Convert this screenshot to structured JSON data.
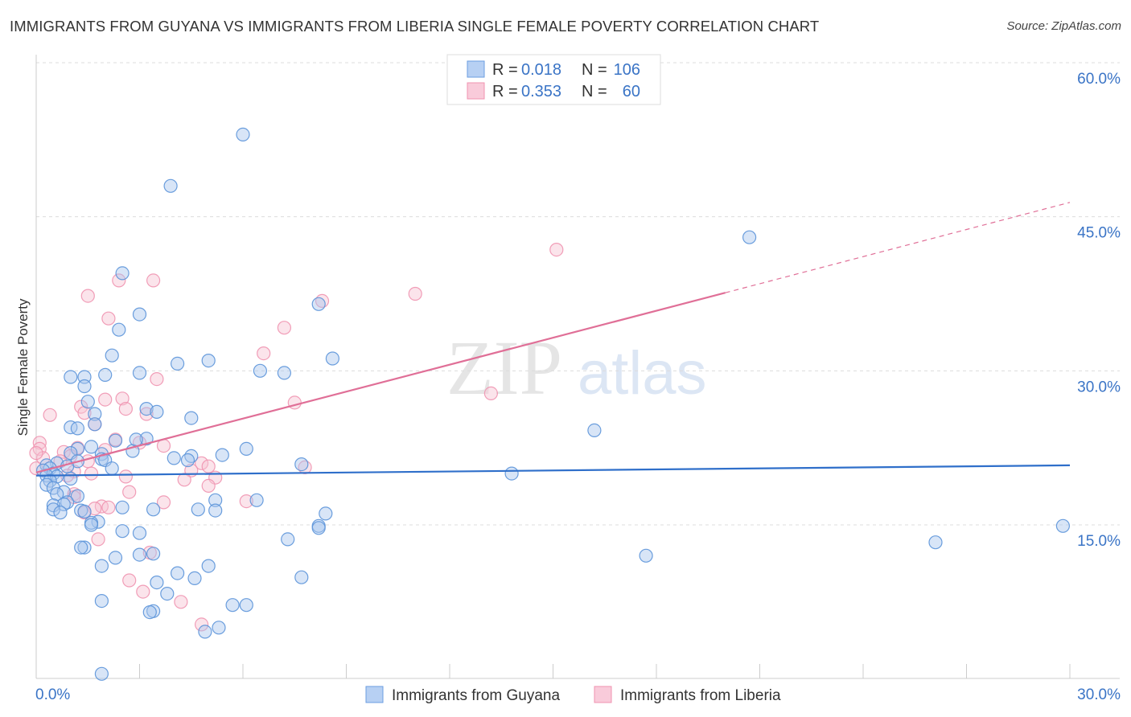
{
  "chart_data": {
    "type": "scatter",
    "title": "IMMIGRANTS FROM GUYANA VS IMMIGRANTS FROM LIBERIA SINGLE FEMALE POVERTY CORRELATION CHART",
    "source": "Source: ZipAtlas.com",
    "xlabel": "",
    "ylabel": "Single Female Poverty",
    "xlim": [
      0,
      30
    ],
    "ylim": [
      0,
      60
    ],
    "x_tick_labels": [
      "0.0%",
      "30.0%"
    ],
    "y_ticks": [
      15,
      30,
      45,
      60
    ],
    "y_tick_labels": [
      "15.0%",
      "30.0%",
      "45.0%",
      "60.0%"
    ],
    "watermark": {
      "part1": "ZIP",
      "part2": "atlas"
    },
    "legend": {
      "r_label": "R =",
      "n_label": "N =",
      "entries": [
        {
          "name": "Immigrants from Guyana",
          "r": "0.018",
          "n": "106",
          "color": "#5b93d9"
        },
        {
          "name": "Immigrants from Liberia",
          "r": "0.353",
          "n": "60",
          "color": "#f093b0"
        }
      ]
    },
    "series": [
      {
        "name": "Immigrants from Guyana",
        "color": "#5b93d9",
        "fill": "#a9c6ee",
        "trend": {
          "x": [
            0,
            30
          ],
          "y": [
            19.8,
            20.8
          ],
          "color": "#2f6fca"
        },
        "points": [
          [
            6.0,
            53.0
          ],
          [
            3.9,
            48.0
          ],
          [
            20.7,
            43.0
          ],
          [
            2.5,
            39.5
          ],
          [
            8.2,
            36.5
          ],
          [
            3.0,
            35.5
          ],
          [
            2.4,
            34.0
          ],
          [
            2.2,
            31.5
          ],
          [
            5.0,
            31.0
          ],
          [
            8.6,
            31.2
          ],
          [
            4.1,
            30.7
          ],
          [
            6.5,
            30.0
          ],
          [
            7.2,
            29.8
          ],
          [
            3.0,
            29.8
          ],
          [
            2.0,
            29.6
          ],
          [
            1.0,
            29.4
          ],
          [
            1.4,
            29.4
          ],
          [
            1.4,
            28.5
          ],
          [
            1.5,
            27.0
          ],
          [
            3.2,
            26.3
          ],
          [
            1.7,
            25.8
          ],
          [
            4.5,
            25.4
          ],
          [
            1.0,
            24.5
          ],
          [
            1.2,
            24.4
          ],
          [
            1.7,
            24.8
          ],
          [
            16.2,
            24.2
          ],
          [
            2.3,
            23.2
          ],
          [
            3.2,
            23.4
          ],
          [
            6.1,
            22.4
          ],
          [
            1.6,
            22.6
          ],
          [
            1.2,
            22.4
          ],
          [
            2.8,
            22.2
          ],
          [
            1.0,
            22.0
          ],
          [
            1.9,
            21.9
          ],
          [
            5.4,
            21.8
          ],
          [
            4.5,
            21.7
          ],
          [
            4.0,
            21.5
          ],
          [
            4.4,
            21.3
          ],
          [
            1.9,
            21.4
          ],
          [
            2.0,
            21.3
          ],
          [
            1.2,
            21.2
          ],
          [
            0.6,
            21.0
          ],
          [
            0.9,
            20.7
          ],
          [
            0.3,
            20.8
          ],
          [
            0.4,
            20.5
          ],
          [
            2.2,
            20.5
          ],
          [
            7.7,
            20.9
          ],
          [
            0.2,
            20.3
          ],
          [
            0.5,
            20.0
          ],
          [
            0.3,
            19.8
          ],
          [
            0.6,
            19.7
          ],
          [
            13.8,
            20.0
          ],
          [
            1.0,
            19.5
          ],
          [
            0.4,
            19.3
          ],
          [
            0.3,
            18.9
          ],
          [
            0.5,
            18.6
          ],
          [
            0.8,
            18.2
          ],
          [
            0.6,
            18.0
          ],
          [
            1.2,
            17.8
          ],
          [
            0.9,
            17.2
          ],
          [
            0.8,
            17.0
          ],
          [
            0.5,
            16.9
          ],
          [
            5.2,
            17.4
          ],
          [
            6.4,
            17.4
          ],
          [
            2.5,
            16.7
          ],
          [
            3.4,
            16.5
          ],
          [
            0.5,
            16.5
          ],
          [
            1.3,
            16.4
          ],
          [
            5.2,
            16.4
          ],
          [
            1.4,
            16.3
          ],
          [
            0.7,
            16.2
          ],
          [
            4.7,
            16.5
          ],
          [
            8.4,
            16.1
          ],
          [
            1.8,
            15.3
          ],
          [
            1.6,
            15.2
          ],
          [
            1.6,
            15.0
          ],
          [
            2.5,
            14.4
          ],
          [
            3.0,
            14.2
          ],
          [
            8.2,
            14.9
          ],
          [
            8.2,
            14.7
          ],
          [
            7.3,
            13.6
          ],
          [
            1.4,
            12.8
          ],
          [
            1.3,
            12.8
          ],
          [
            3.0,
            12.1
          ],
          [
            3.4,
            12.2
          ],
          [
            2.3,
            11.8
          ],
          [
            17.7,
            12.0
          ],
          [
            26.1,
            13.3
          ],
          [
            29.8,
            14.9
          ],
          [
            1.9,
            11.0
          ],
          [
            5.0,
            11.0
          ],
          [
            4.1,
            10.3
          ],
          [
            4.6,
            9.8
          ],
          [
            7.7,
            9.9
          ],
          [
            3.5,
            9.4
          ],
          [
            3.8,
            8.3
          ],
          [
            1.9,
            7.6
          ],
          [
            5.7,
            7.2
          ],
          [
            6.1,
            7.2
          ],
          [
            3.4,
            6.6
          ],
          [
            3.3,
            6.5
          ],
          [
            5.3,
            5.0
          ],
          [
            4.9,
            4.6
          ],
          [
            1.9,
            0.5
          ],
          [
            2.9,
            23.3
          ],
          [
            3.5,
            26.0
          ]
        ]
      },
      {
        "name": "Immigrants from Liberia",
        "color": "#f093b0",
        "fill": "#f7c3d3",
        "trend": {
          "x": [
            0,
            20.0
          ],
          "y": [
            20.1,
            37.6
          ],
          "x_dash_end": 30,
          "y_dash_end": 46.4,
          "color": "#e06f97"
        },
        "points": [
          [
            15.1,
            41.8
          ],
          [
            3.4,
            38.8
          ],
          [
            2.4,
            38.8
          ],
          [
            11.0,
            37.5
          ],
          [
            1.5,
            37.3
          ],
          [
            8.3,
            36.8
          ],
          [
            2.1,
            35.1
          ],
          [
            7.2,
            34.2
          ],
          [
            6.6,
            31.7
          ],
          [
            3.5,
            29.2
          ],
          [
            13.2,
            27.8
          ],
          [
            2.5,
            27.3
          ],
          [
            2.0,
            27.2
          ],
          [
            7.5,
            26.9
          ],
          [
            1.3,
            26.5
          ],
          [
            2.6,
            26.3
          ],
          [
            3.2,
            25.8
          ],
          [
            1.4,
            25.9
          ],
          [
            0.4,
            25.7
          ],
          [
            1.7,
            24.8
          ],
          [
            0.1,
            23.0
          ],
          [
            2.3,
            23.3
          ],
          [
            3.7,
            22.7
          ],
          [
            1.2,
            22.5
          ],
          [
            0.1,
            22.4
          ],
          [
            2.0,
            22.3
          ],
          [
            0.8,
            22.1
          ],
          [
            1.0,
            21.7
          ],
          [
            1.5,
            21.2
          ],
          [
            0.2,
            21.5
          ],
          [
            0.7,
            21.2
          ],
          [
            4.8,
            21.0
          ],
          [
            7.8,
            20.6
          ],
          [
            4.5,
            20.3
          ],
          [
            5.0,
            20.7
          ],
          [
            1.1,
            20.2
          ],
          [
            1.6,
            20.0
          ],
          [
            0.9,
            19.8
          ],
          [
            2.6,
            19.7
          ],
          [
            5.2,
            19.6
          ],
          [
            4.3,
            19.4
          ],
          [
            5.0,
            18.8
          ],
          [
            2.7,
            18.2
          ],
          [
            1.1,
            18.0
          ],
          [
            1.1,
            17.7
          ],
          [
            6.1,
            17.3
          ],
          [
            3.7,
            17.2
          ],
          [
            1.9,
            16.8
          ],
          [
            1.7,
            16.6
          ],
          [
            2.1,
            16.7
          ],
          [
            1.4,
            16.2
          ],
          [
            1.8,
            13.6
          ],
          [
            3.3,
            12.3
          ],
          [
            2.7,
            9.6
          ],
          [
            3.1,
            8.5
          ],
          [
            4.2,
            7.5
          ],
          [
            4.8,
            5.3
          ],
          [
            0.0,
            22.0
          ],
          [
            0.0,
            20.5
          ],
          [
            3.0,
            23.0
          ]
        ]
      }
    ]
  }
}
